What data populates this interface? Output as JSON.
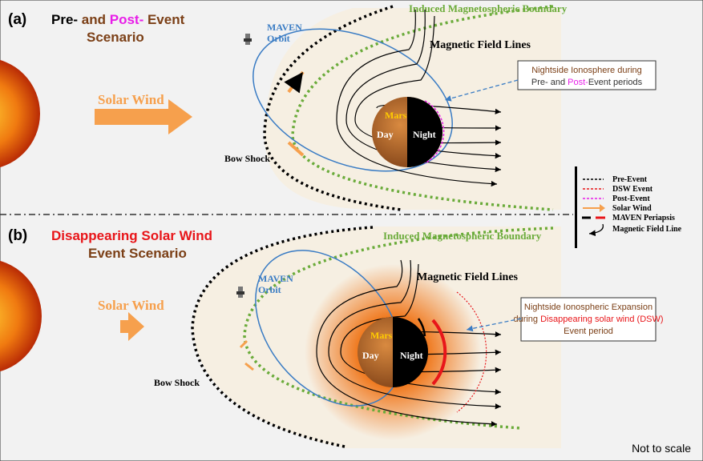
{
  "colors": {
    "solar_wind": "#f6a04d",
    "orbit": "#3a7cc4",
    "imb": "#6aab3a",
    "title_brown": "#7b3f16",
    "post": "#e81ee8",
    "dsw": "#e8161a"
  },
  "panel_a": {
    "label": "(a)",
    "title_1": "Pre-",
    "title_2": " and ",
    "title_3": "Post-",
    "title_4": " Event",
    "title_5": "Scenario",
    "solar_wind": "Solar Wind",
    "orbit_1": "MAVEN",
    "orbit_2": "Orbit",
    "bow_shock": "Bow Shock",
    "imb": "Induced Magnetospheric Boundary",
    "field_lines": "Magnetic Field Lines",
    "mars": "Mars",
    "day": "Day",
    "night": "Night",
    "callout_1": "Nightside Ionosphere during",
    "callout_2a": "Pre-",
    "callout_2b": " and ",
    "callout_2c": "Post-",
    "callout_2d": "Event periods"
  },
  "panel_b": {
    "label": "(b)",
    "title_1": "Disappearing Solar Wind",
    "title_2": "Event Scenario",
    "solar_wind": "Solar Wind",
    "orbit_1": "MAVEN",
    "orbit_2": "Orbit",
    "bow_shock": "Bow Shock",
    "imb": "Induced Magnetospheric Boundary",
    "field_lines": "Magnetic Field Lines",
    "mars": "Mars",
    "day": "Day",
    "night": "Night",
    "callout_1": "Nightside Ionospheric Expansion",
    "callout_2a": "during ",
    "callout_2b": "Disappearing solar wind (DSW)",
    "callout_3": "Event period"
  },
  "legend": [
    "Pre-Event",
    "DSW Event",
    "Post-Event",
    "Solar Wind",
    "MAVEN Periapsis",
    "Magnetic Field Line"
  ],
  "footer": "Not to scale"
}
